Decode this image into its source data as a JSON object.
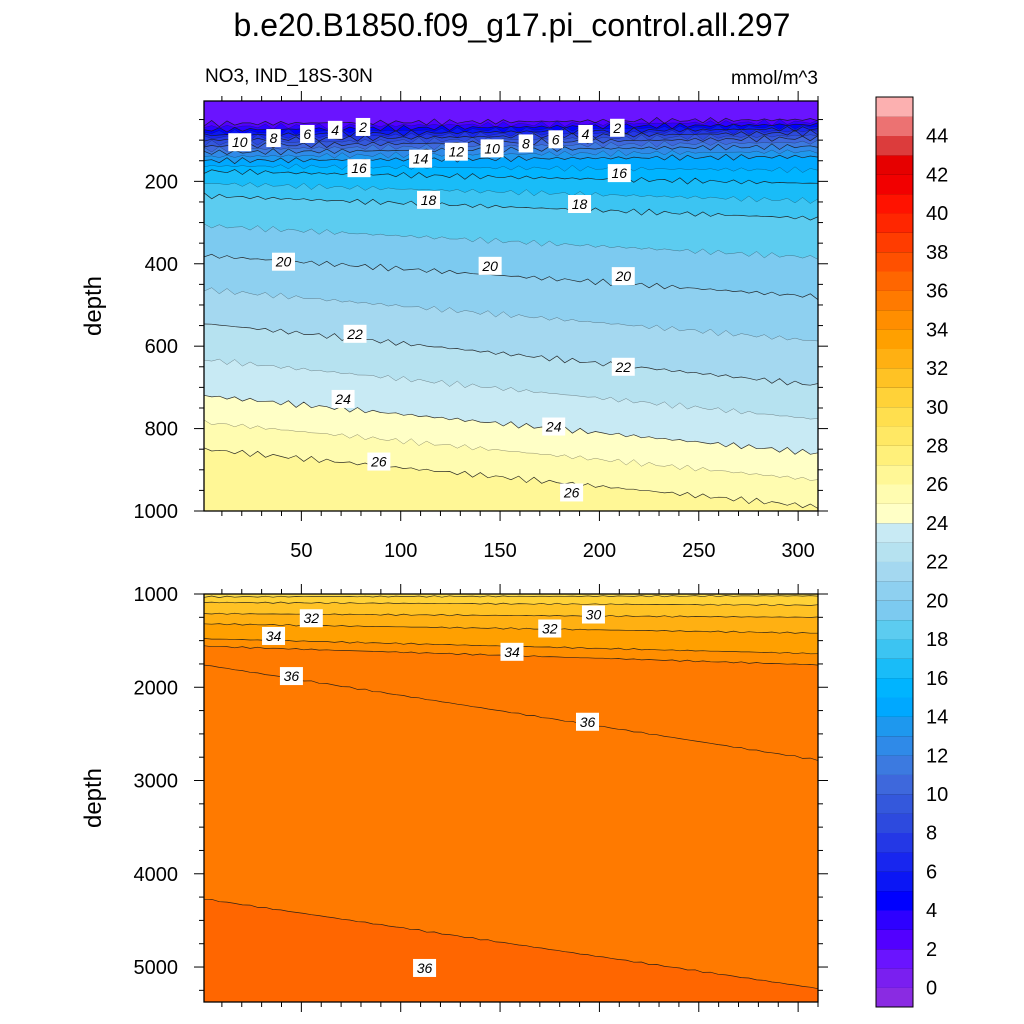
{
  "chart_data": {
    "type": "heatmap",
    "title": "b.e20.B1850.f09_g17.pi_control.all.297",
    "subtitle_left": "NO3, IND_18S-30N",
    "subtitle_right": "mmol/m^3",
    "panels": [
      {
        "id": "upper",
        "ylabel": "depth",
        "xlim": [
          1,
          310
        ],
        "ylim": [
          1000,
          5
        ],
        "y_reversed": true,
        "xticks": [
          50,
          100,
          150,
          200,
          250,
          300
        ],
        "yticks": [
          200,
          400,
          600,
          800,
          1000
        ],
        "contour_interval": 1,
        "contours": [
          {
            "level": 2,
            "depth_at_x0": 60,
            "depth_at_x310": 50
          },
          {
            "level": 4,
            "depth_at_x0": 75,
            "depth_at_x310": 62
          },
          {
            "level": 6,
            "depth_at_x0": 88,
            "depth_at_x310": 72
          },
          {
            "level": 8,
            "depth_at_x0": 100,
            "depth_at_x310": 82
          },
          {
            "level": 10,
            "depth_at_x0": 115,
            "depth_at_x310": 95
          },
          {
            "level": 12,
            "depth_at_x0": 130,
            "depth_at_x310": 115
          },
          {
            "level": 14,
            "depth_at_x0": 150,
            "depth_at_x310": 140
          },
          {
            "level": 16,
            "depth_at_x0": 175,
            "depth_at_x310": 205
          },
          {
            "level": 18,
            "depth_at_x0": 235,
            "depth_at_x310": 290
          },
          {
            "level": 20,
            "depth_at_x0": 380,
            "depth_at_x310": 480
          },
          {
            "level": 22,
            "depth_at_x0": 545,
            "depth_at_x310": 695
          },
          {
            "level": 24,
            "depth_at_x0": 720,
            "depth_at_x310": 860
          },
          {
            "level": 26,
            "depth_at_x0": 850,
            "depth_at_x310": 990
          }
        ],
        "labels": [
          {
            "text": "2",
            "x": 81,
            "depth": 68
          },
          {
            "text": "4",
            "x": 67,
            "depth": 75
          },
          {
            "text": "6",
            "x": 53,
            "depth": 85
          },
          {
            "text": "8",
            "x": 36,
            "depth": 95
          },
          {
            "text": "10",
            "x": 19,
            "depth": 105
          },
          {
            "text": "16",
            "x": 79,
            "depth": 168
          },
          {
            "text": "14",
            "x": 110,
            "depth": 145
          },
          {
            "text": "12",
            "x": 128,
            "depth": 128
          },
          {
            "text": "10",
            "x": 146,
            "depth": 120
          },
          {
            "text": "8",
            "x": 163,
            "depth": 108
          },
          {
            "text": "6",
            "x": 178,
            "depth": 98
          },
          {
            "text": "4",
            "x": 193,
            "depth": 85
          },
          {
            "text": "2",
            "x": 209,
            "depth": 70
          },
          {
            "text": "16",
            "x": 210,
            "depth": 180
          },
          {
            "text": "18",
            "x": 114,
            "depth": 245
          },
          {
            "text": "18",
            "x": 190,
            "depth": 255
          },
          {
            "text": "20",
            "x": 41,
            "depth": 395
          },
          {
            "text": "20",
            "x": 145,
            "depth": 405
          },
          {
            "text": "20",
            "x": 212,
            "depth": 430
          },
          {
            "text": "22",
            "x": 77,
            "depth": 570
          },
          {
            "text": "22",
            "x": 212,
            "depth": 650
          },
          {
            "text": "24",
            "x": 71,
            "depth": 728
          },
          {
            "text": "24",
            "x": 177,
            "depth": 795
          },
          {
            "text": "26",
            "x": 89,
            "depth": 880
          },
          {
            "text": "26",
            "x": 186,
            "depth": 955
          }
        ]
      },
      {
        "id": "lower",
        "ylabel": "depth",
        "xlim": [
          1,
          310
        ],
        "ylim": [
          5375,
          1000
        ],
        "y_reversed": true,
        "xticks": [
          50,
          100,
          150,
          200,
          250,
          300
        ],
        "yticks": [
          1000,
          2000,
          3000,
          4000,
          5000
        ],
        "contour_interval": 1,
        "contours": [
          {
            "level": 30,
            "depth_at_x0": 1030,
            "depth_at_x310": 1020
          },
          {
            "level": 31,
            "depth_at_x0": 1090,
            "depth_at_x310": 1120
          },
          {
            "level": 32,
            "depth_at_x0": 1210,
            "depth_at_x310": 1250
          },
          {
            "level": 33,
            "depth_at_x0": 1320,
            "depth_at_x310": 1420
          },
          {
            "level": 34,
            "depth_at_x0": 1480,
            "depth_at_x310": 1640
          },
          {
            "level": 35,
            "depth_at_x0": 1560,
            "depth_at_x310": 1760
          },
          {
            "level": 35.5,
            "depth_at_x0": 1760,
            "depth_at_x310": 2780
          },
          {
            "level": 36,
            "depth_at_x0": 4270,
            "depth_at_x310": 5230
          }
        ],
        "labels": [
          {
            "text": "32",
            "x": 55,
            "depth": 1260
          },
          {
            "text": "34",
            "x": 36,
            "depth": 1450
          },
          {
            "text": "36",
            "x": 45,
            "depth": 1880
          },
          {
            "text": "30",
            "x": 197,
            "depth": 1220
          },
          {
            "text": "32",
            "x": 175,
            "depth": 1370
          },
          {
            "text": "34",
            "x": 156,
            "depth": 1620
          },
          {
            "text": "36",
            "x": 194,
            "depth": 2370
          },
          {
            "text": "36",
            "x": 112,
            "depth": 5010
          }
        ]
      }
    ],
    "colorbar": {
      "orientation": "vertical",
      "range": [
        -1,
        46
      ],
      "step": 1,
      "tick_labels": [
        "0",
        "2",
        "4",
        "6",
        "8",
        "10",
        "12",
        "14",
        "16",
        "18",
        "20",
        "22",
        "24",
        "26",
        "28",
        "30",
        "32",
        "34",
        "36",
        "38",
        "40",
        "42",
        "44"
      ],
      "colors": [
        "#8a2be2",
        "#7a1ff0",
        "#6a14ff",
        "#5200ff",
        "#2e00ff",
        "#0000ff",
        "#0b16f5",
        "#1826ef",
        "#2438e6",
        "#2d4ade",
        "#3458dc",
        "#3e68dc",
        "#3c7ae0",
        "#2f8ae8",
        "#1e98ee",
        "#00a8ff",
        "#00b4ff",
        "#19bcf8",
        "#3cc4f2",
        "#5cccf0",
        "#7ccaf0",
        "#8ed0f0",
        "#a4d8f0",
        "#b6e2f0",
        "#c8eaf4",
        "#ffffc6",
        "#fffcb0",
        "#fff796",
        "#fff07a",
        "#ffe864",
        "#ffdf4e",
        "#ffd238",
        "#ffc224",
        "#ffb012",
        "#ffa000",
        "#ff8e00",
        "#ff7a00",
        "#ff6600",
        "#ff5000",
        "#ff3c00",
        "#ff2600",
        "#ff1200",
        "#f20000",
        "#e60000",
        "#dc3c3c",
        "#ec7272",
        "#fcb0b0"
      ]
    }
  }
}
